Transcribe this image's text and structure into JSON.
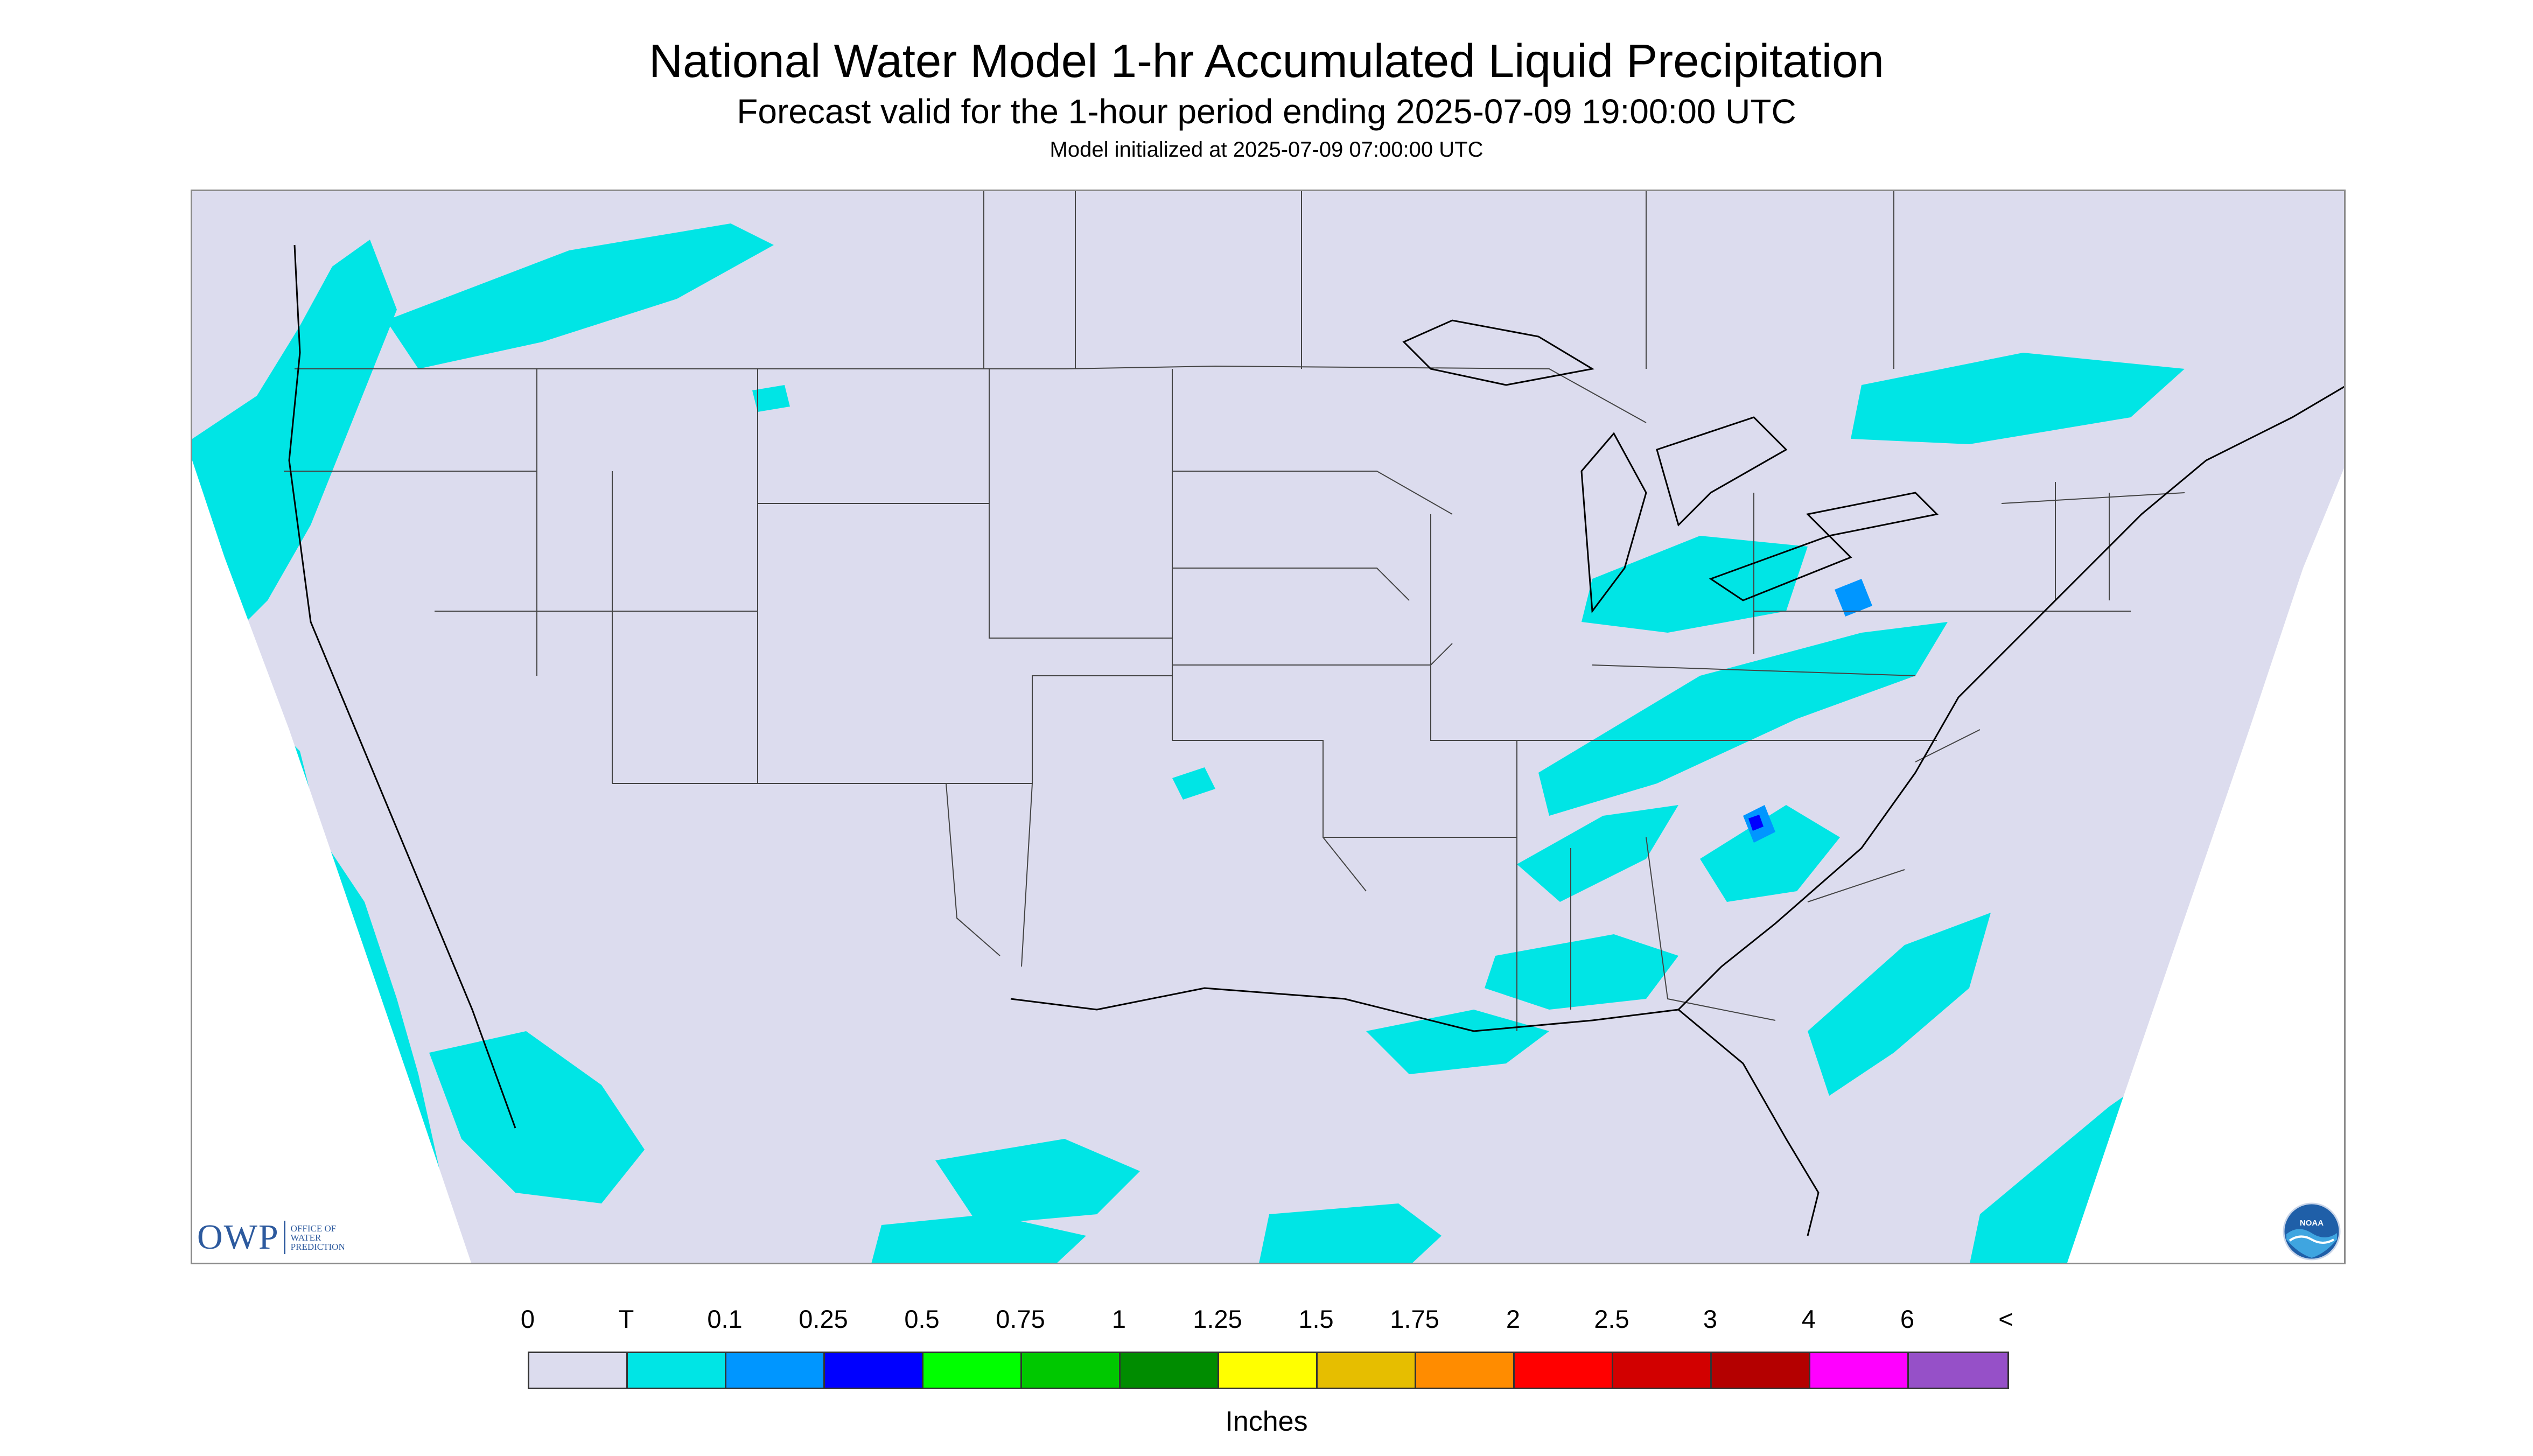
{
  "header": {
    "title": "National Water Model 1-hr Accumulated Liquid Precipitation",
    "subtitle": "Forecast valid for the 1-hour period ending 2025-07-09 19:00:00 UTC",
    "init_line": "Model initialized at 2025-07-09 07:00:00 UTC"
  },
  "map": {
    "region": "CONUS",
    "background_color": "#dcdcee",
    "outside_domain_color": "#ffffff",
    "boundary_color": "#444444",
    "coastline_color": "#000000",
    "dominant_precip_color": "#00e5e5",
    "light_precip_color": "#0096ff",
    "moderate_precip_color": "#0000ff"
  },
  "logos": {
    "owp": {
      "mark": "OWP",
      "line1": "OFFICE OF",
      "line2": "WATER",
      "line3": "PREDICTION",
      "icon": "owp-logo"
    },
    "noaa": {
      "text": "NOAA",
      "icon": "noaa-logo"
    }
  },
  "legend": {
    "labels": [
      "0",
      "T",
      "0.1",
      "0.25",
      "0.5",
      "0.75",
      "1",
      "1.25",
      "1.5",
      "1.75",
      "2",
      "2.5",
      "3",
      "4",
      "6",
      "<"
    ],
    "colors": [
      "#dcdcee",
      "#00e5e5",
      "#0096ff",
      "#0000ff",
      "#00ff00",
      "#00c800",
      "#008c00",
      "#ffff00",
      "#e6be00",
      "#ff8c00",
      "#ff0000",
      "#d20000",
      "#b40000",
      "#ff00ff",
      "#9650c8"
    ],
    "units": "Inches"
  }
}
